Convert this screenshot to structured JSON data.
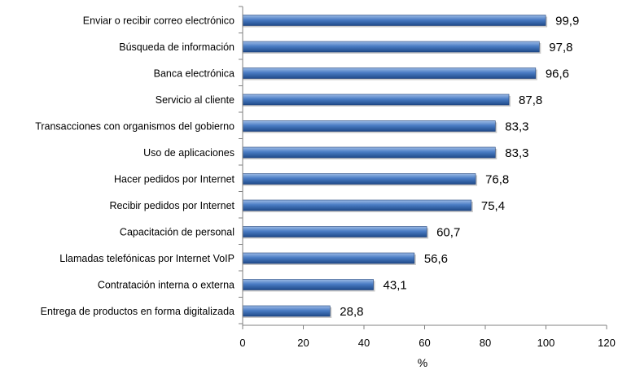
{
  "chart_data": {
    "type": "bar",
    "orientation": "horizontal",
    "categories": [
      "Enviar o recibir correo electrónico",
      "Búsqueda de información",
      "Banca electrónica",
      "Servicio al cliente",
      "Transacciones con organismos del gobierno",
      "Uso de aplicaciones",
      "Hacer pedidos por Internet",
      "Recibir pedidos por Internet",
      "Capacitación de personal",
      "Llamadas telefónicas por Internet VoIP",
      "Contratación interna o externa",
      "Entrega de productos en forma digitalizada"
    ],
    "values": [
      99.9,
      97.8,
      96.6,
      87.8,
      83.3,
      83.3,
      76.8,
      75.4,
      60.7,
      56.6,
      43.1,
      28.8
    ],
    "value_labels": [
      "99,9",
      "97,8",
      "96,6",
      "87,8",
      "83,3",
      "83,3",
      "76,8",
      "75,4",
      "60,7",
      "56,6",
      "43,1",
      "28,8"
    ],
    "xlabel": "%",
    "xlim": [
      0,
      120
    ],
    "xticks": [
      0,
      20,
      40,
      60,
      80,
      100,
      120
    ],
    "grid": false,
    "legend": "none",
    "bar_color": "#3f6fb5"
  }
}
